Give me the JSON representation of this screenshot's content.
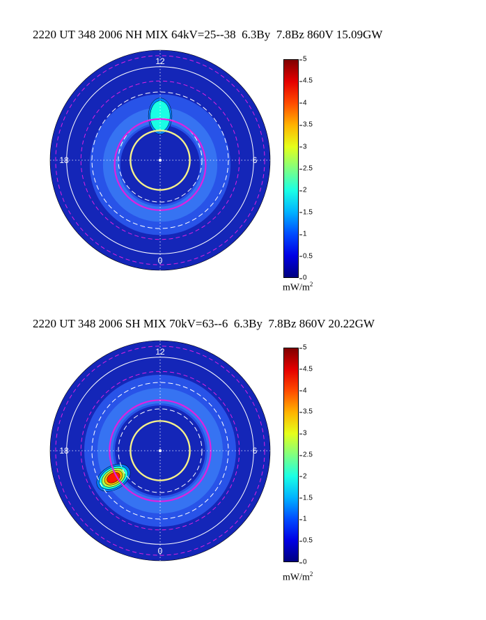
{
  "colors": {
    "background_disk": "#1426b8",
    "aurora_low": "#2b5cf0",
    "aurora_mid": "#24c8d8",
    "aurora_high": "#f0e040",
    "aurora_peak": "#e03018",
    "magenta": "#e020e0",
    "yellow": "#f5f08a",
    "grid_white": "#ffffff"
  },
  "chart_data": [
    {
      "type": "heatmap",
      "projection": "polar",
      "title": "2220 UT 348 2006 NH MIX 64kV=25--38  6.3By  7.8Bz 860V 15.09GW",
      "clock_labels": {
        "top": "12",
        "left": "18",
        "right": "6",
        "bottom": "0"
      },
      "colorbar": {
        "range": [
          0,
          5
        ],
        "ticks": [
          "0",
          "0.5",
          "1",
          "1.5",
          "2",
          "2.5",
          "3",
          "3.5",
          "4",
          "4.5",
          "5"
        ],
        "units": "mW/m",
        "units_exponent": "2"
      },
      "grid": true,
      "aurora": {
        "oval_center_offset": [
          0,
          0.04
        ],
        "oval_radius": 0.45,
        "peak_value": 2.0,
        "peak_mlt_hour": 12.0
      }
    },
    {
      "type": "heatmap",
      "projection": "polar",
      "title": "2220 UT 348 2006 SH MIX 70kV=63--6  6.3By  7.8Bz 860V 20.22GW",
      "clock_labels": {
        "top": "12",
        "left": "18",
        "right": "6",
        "bottom": "0"
      },
      "colorbar": {
        "range": [
          0,
          5
        ],
        "ticks": [
          "0",
          "0.5",
          "1",
          "1.5",
          "2",
          "2.5",
          "3",
          "3.5",
          "4",
          "4.5",
          "5"
        ],
        "units": "mW/m",
        "units_exponent": "2"
      },
      "grid": true,
      "aurora": {
        "oval_center_offset": [
          0,
          0
        ],
        "oval_radius": 0.5,
        "peak_value": 4.0,
        "peak_mlt_hour": 20.0
      }
    }
  ]
}
